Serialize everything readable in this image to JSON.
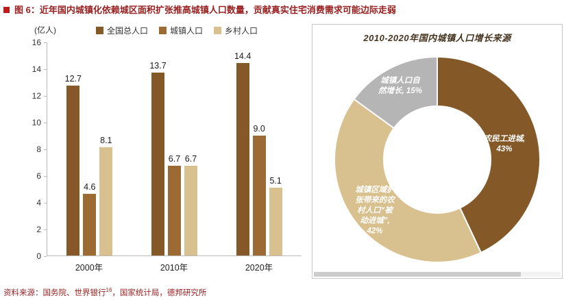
{
  "page": {
    "title": "图 6：近年国内城镇化依赖城区面积扩张推高城镇人口数量，贡献真实住宅消费需求可能边际走弱",
    "accent_red": "#992020",
    "source": {
      "prefix": "资料来源：国务院、世界银行",
      "superscript": "16",
      "suffix": "，国家统计局，德邦研究所"
    }
  },
  "chart_data": [
    {
      "type": "bar",
      "title": "",
      "unit_label": "(亿人)",
      "categories": [
        "2000年",
        "2010年",
        "2020年"
      ],
      "series": [
        {
          "name": "全国总人口",
          "color": "#845927",
          "values": [
            12.7,
            13.7,
            14.4
          ]
        },
        {
          "name": "城镇人口",
          "color": "#9c6b33",
          "values": [
            4.6,
            6.7,
            9.0
          ]
        },
        {
          "name": "乡村人口",
          "color": "#d9c08f",
          "values": [
            8.1,
            6.7,
            5.1
          ]
        }
      ],
      "ylim": [
        0,
        16
      ],
      "ytick_step": 2,
      "grid": false,
      "legend_position": "top"
    },
    {
      "type": "pie",
      "donut": true,
      "title": "2010-2020年国内城镇人口增长来源",
      "start_angle_deg": 0,
      "direction": "clockwise",
      "slices": [
        {
          "label": "农民工进城, 43%",
          "value": 43,
          "color": "#845927"
        },
        {
          "label": "城镇区域扩张带来的农村人口“被动进城”, 42%",
          "value": 42,
          "color": "#d9c08f"
        },
        {
          "label": "城镇人口自然增长, 15%",
          "value": 15,
          "color": "#b5b5b5"
        }
      ]
    }
  ]
}
